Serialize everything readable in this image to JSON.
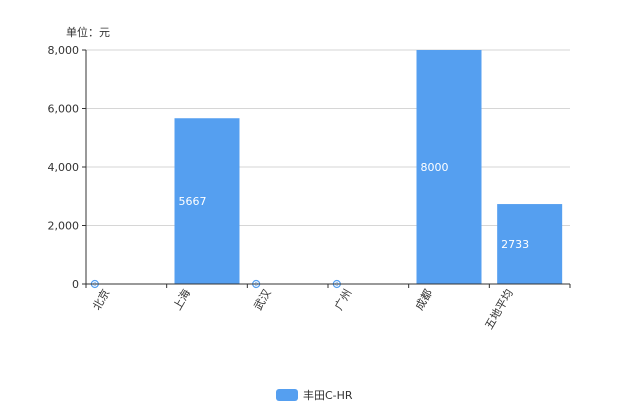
{
  "chart_data": {
    "type": "bar",
    "unit_label": "单位：元",
    "categories": [
      "北京",
      "上海",
      "武汉",
      "广州",
      "成都",
      "五地平均"
    ],
    "series": [
      {
        "name": "丰田C-HR",
        "color": "#559ff0",
        "values": [
          0,
          5667,
          0,
          0,
          8000,
          2733
        ],
        "data_labels": [
          "0",
          "5667",
          "0",
          "0",
          "8000",
          "2733"
        ]
      }
    ],
    "ylim": [
      0,
      8000
    ],
    "yticks": [
      0,
      2000,
      4000,
      6000,
      8000
    ],
    "ytick_labels": [
      "0",
      "2,000",
      "4,000",
      "6,000",
      "8,000"
    ],
    "grid": true,
    "legend_position": "bottom-center",
    "colors": {
      "axis": "#333333",
      "grid": "#d6d6d6",
      "label_inside_bar": "#ffffff",
      "zero_marker": "#559ff0"
    }
  }
}
